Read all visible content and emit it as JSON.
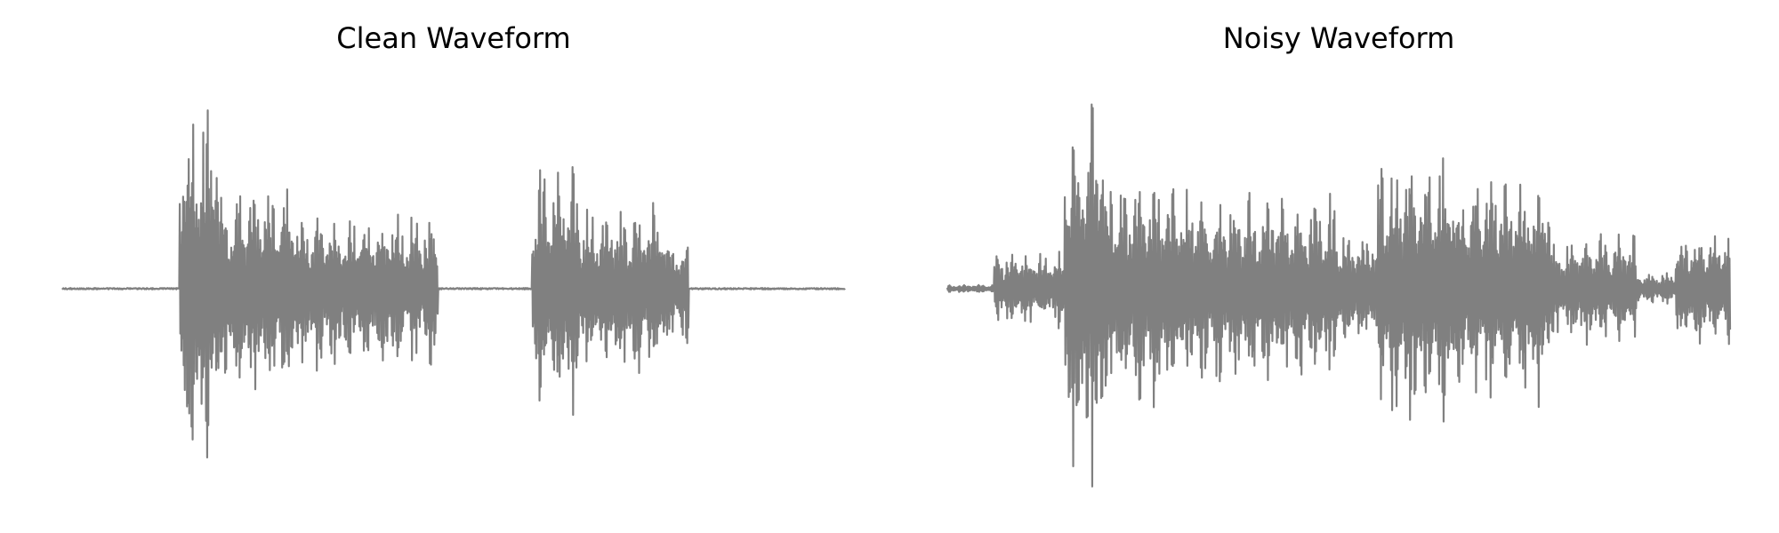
{
  "chart_data": [
    {
      "type": "line",
      "title": "Clean Waveform",
      "xlabel": "",
      "ylabel": "",
      "axis": "off",
      "grid": false,
      "color": "#808080",
      "ylim": [
        -1,
        1
      ],
      "x_segments": [
        "0-6%",
        "6-15%",
        "15-20%",
        "20-30%",
        "30-40%",
        "40-48%",
        "48-60%",
        "60-66%",
        "66-77%",
        "77-80%",
        "80-100%"
      ],
      "envelope": [
        0.0,
        0.0,
        0.95,
        0.55,
        0.42,
        0.4,
        0.0,
        0.65,
        0.45,
        0.28,
        0.0
      ]
    },
    {
      "type": "line",
      "title": "Noisy Waveform",
      "xlabel": "",
      "ylabel": "",
      "axis": "off",
      "grid": false,
      "color": "#808080",
      "ylim": [
        -1,
        1
      ],
      "x_segments": [
        "0-6%",
        "6-15%",
        "15-20%",
        "20-30%",
        "30-40%",
        "40-50%",
        "50-55%",
        "55-65%",
        "65-77%",
        "77-80%",
        "80-88%",
        "88-93%",
        "93-100%"
      ],
      "envelope": [
        0.02,
        0.2,
        1.0,
        0.6,
        0.5,
        0.48,
        0.3,
        0.7,
        0.6,
        0.25,
        0.3,
        0.08,
        0.3
      ]
    }
  ]
}
